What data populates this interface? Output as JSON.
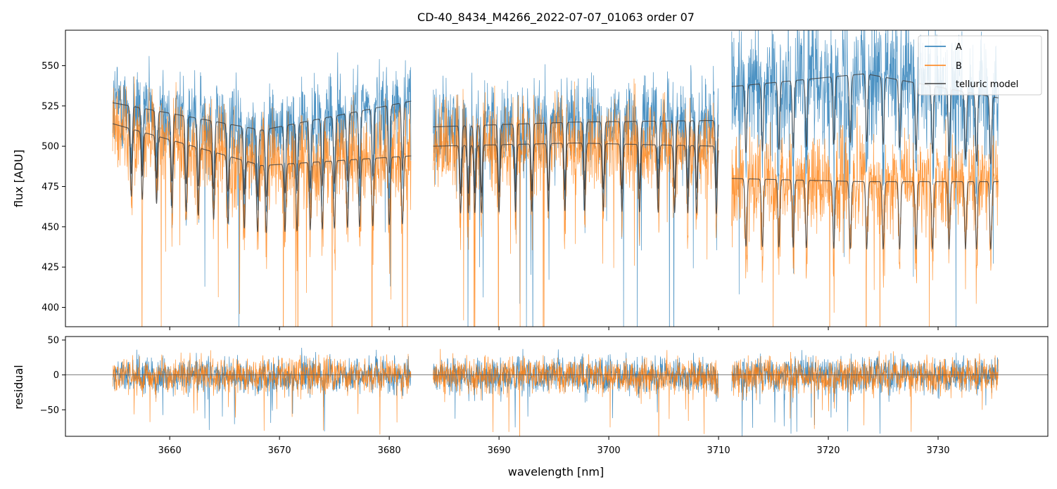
{
  "chart_data": [
    {
      "panel": "main",
      "type": "line",
      "title": "CD-40_8434_M4266_2022-07-07_01063  order 07",
      "xlabel": "",
      "ylabel": "flux [ADU]",
      "xlim": [
        3650.5,
        3740.0
      ],
      "ylim": [
        388,
        572
      ],
      "yticks": [
        400,
        425,
        450,
        475,
        500,
        525,
        550
      ],
      "ytick_labels": [
        "400",
        "425",
        "450",
        "475",
        "500",
        "525",
        "550"
      ],
      "xticks": [
        3660,
        3670,
        3680,
        3690,
        3700,
        3710,
        3720,
        3730
      ],
      "legend": {
        "placement": "top-right",
        "entries": [
          "A",
          "B",
          "telluric model"
        ]
      },
      "series": [
        {
          "name": "A",
          "color": "#1f77b4",
          "segments": [
            {
              "x_range": [
                3654.8,
                3682.0
              ],
              "continuum": [
                527,
                510,
                528
              ],
              "noise": 20
            },
            {
              "x_range": [
                3684.0,
                3710.0
              ],
              "continuum": [
                512,
                515,
                516
              ],
              "noise": 20
            },
            {
              "x_range": [
                3711.2,
                3735.5
              ],
              "continuum": [
                537,
                545,
                530
              ],
              "noise": 28
            }
          ]
        },
        {
          "name": "B",
          "color": "#ff7f0e",
          "segments": [
            {
              "x_range": [
                3654.8,
                3682.0
              ],
              "continuum": [
                514,
                488,
                494
              ],
              "noise": 20
            },
            {
              "x_range": [
                3684.0,
                3710.0
              ],
              "continuum": [
                500,
                502,
                500
              ],
              "noise": 20
            },
            {
              "x_range": [
                3711.2,
                3735.5
              ],
              "continuum": [
                480,
                478,
                478
              ],
              "noise": 22
            }
          ]
        },
        {
          "name": "telluric model",
          "color": "#404040",
          "segments": [
            {
              "x_range": [
                3654.8,
                3682.0
              ],
              "curves": [
                [
                  527,
                  510,
                  528
                ],
                [
                  514,
                  488,
                  494
                ]
              ]
            },
            {
              "x_range": [
                3684.0,
                3710.0
              ],
              "curves": [
                [
                  512,
                  515,
                  516
                ],
                [
                  500,
                  502,
                  500
                ]
              ]
            },
            {
              "x_range": [
                3711.2,
                3735.5
              ],
              "curves": [
                [
                  537,
                  545,
                  530
                ],
                [
                  480,
                  478,
                  478
                ]
              ]
            }
          ]
        }
      ],
      "absorption_lines": [
        3656.5,
        3657.5,
        3658.8,
        3660.2,
        3661.5,
        3662.6,
        3664.0,
        3665.3,
        3666.8,
        3668.0,
        3668.8,
        3670.5,
        3671.6,
        3672.8,
        3673.9,
        3675.0,
        3676.2,
        3677.3,
        3678.5,
        3680.0,
        3681.2,
        3686.5,
        3687.2,
        3687.8,
        3688.4,
        3690.0,
        3691.5,
        3693.0,
        3694.5,
        3696.0,
        3697.8,
        3699.5,
        3701.2,
        3702.8,
        3704.5,
        3706.0,
        3707.2,
        3708.0,
        3709.8,
        3712.5,
        3714.0,
        3715.5,
        3716.8,
        3718.0,
        3720.5,
        3722.0,
        3723.5,
        3725.0,
        3726.5,
        3728.0,
        3729.5,
        3731.0,
        3732.5,
        3733.5,
        3734.8
      ]
    },
    {
      "panel": "residual",
      "type": "line",
      "xlabel": "wavelength [nm]",
      "ylabel": "residual",
      "xlim": [
        3650.5,
        3740.0
      ],
      "ylim": [
        -88,
        55
      ],
      "yticks": [
        -50,
        0,
        50
      ],
      "ytick_labels": [
        "−50",
        "0",
        "50"
      ],
      "xticks": [
        3660,
        3670,
        3680,
        3690,
        3700,
        3710,
        3720,
        3730
      ],
      "xtick_labels": [
        "3660",
        "3670",
        "3680",
        "3690",
        "3700",
        "3710",
        "3720",
        "3730"
      ],
      "zero_line": 0,
      "series": [
        {
          "name": "A",
          "color": "#1f77b4",
          "noise": 18
        },
        {
          "name": "B",
          "color": "#ff7f0e",
          "noise": 18
        }
      ],
      "segments": [
        [
          3654.8,
          3682.0
        ],
        [
          3684.0,
          3710.0
        ],
        [
          3711.2,
          3735.5
        ]
      ]
    }
  ]
}
